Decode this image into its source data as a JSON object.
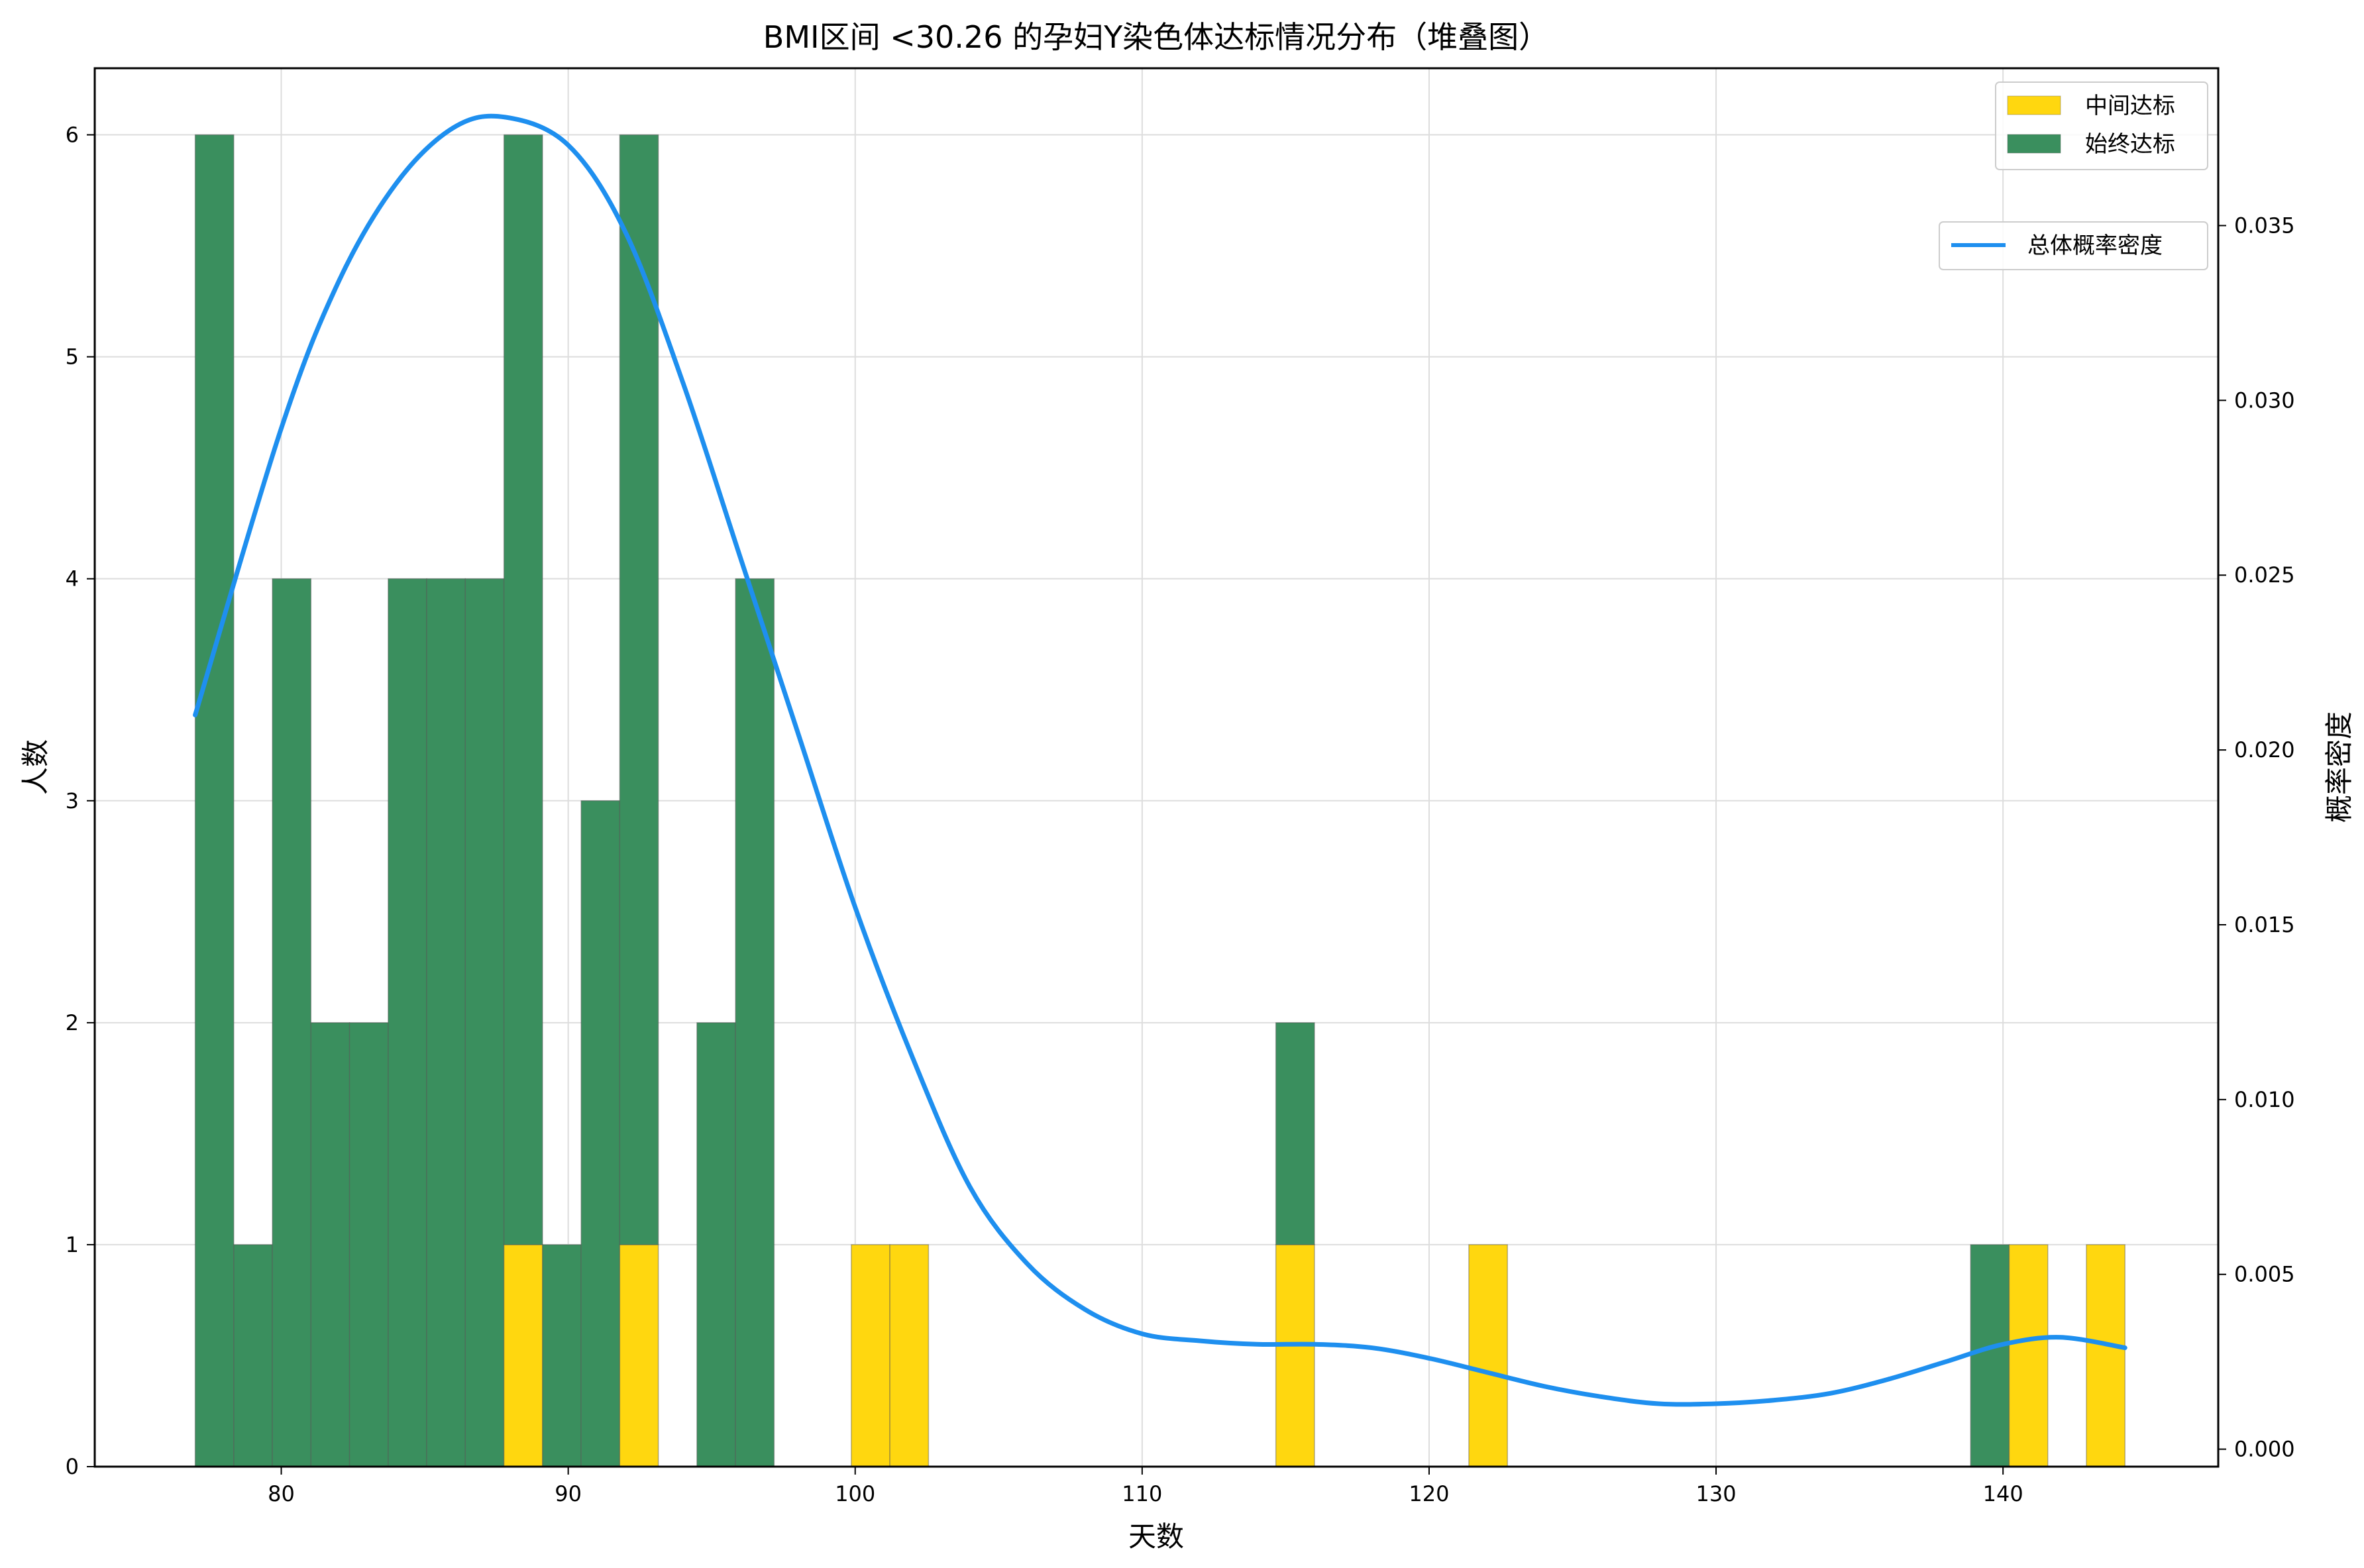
{
  "chart_data": {
    "type": "bar",
    "title": "BMI区间 <30.26 的孕妇Y染色体达标情况分布（堆叠图）",
    "xlabel": "天数",
    "ylabel": "人数",
    "y2label": "概率密度",
    "xlim": [
      73.5,
      147.5
    ],
    "ylim": [
      0,
      6.3
    ],
    "y2lim": [
      -0.0005,
      0.0395
    ],
    "xticks": [
      80,
      90,
      100,
      110,
      120,
      130,
      140
    ],
    "yticks": [
      0,
      1,
      2,
      3,
      4,
      5,
      6
    ],
    "y2ticks": [
      "0.000",
      "0.005",
      "0.010",
      "0.015",
      "0.020",
      "0.025",
      "0.030",
      "0.035"
    ],
    "grid": true,
    "bin_edges": [
      77.0,
      78.345,
      79.69,
      81.035,
      82.38,
      83.725,
      85.07,
      86.415,
      87.76,
      89.105,
      90.45,
      91.795,
      93.14,
      94.485,
      95.83,
      97.175,
      98.52,
      99.865,
      101.21,
      102.555,
      103.9,
      105.245,
      106.59,
      107.935,
      109.28,
      110.625,
      111.97,
      113.315,
      114.66,
      116.005,
      117.35,
      118.695,
      120.04,
      121.385,
      122.73,
      124.075,
      125.42,
      126.765,
      128.11,
      129.455,
      130.8,
      132.145,
      133.49,
      134.835,
      136.18,
      137.525,
      138.87,
      140.215,
      141.56,
      142.905,
      144.25
    ],
    "series": [
      {
        "name": "中间达标",
        "color": "#FFD70F",
        "values": [
          0,
          0,
          0,
          0,
          0,
          0,
          0,
          0,
          1,
          0,
          0,
          1,
          0,
          0,
          0,
          0,
          0,
          1,
          1,
          0,
          0,
          0,
          0,
          0,
          0,
          0,
          0,
          0,
          1,
          0,
          0,
          0,
          0,
          1,
          0,
          0,
          0,
          0,
          0,
          0,
          0,
          0,
          0,
          0,
          0,
          0,
          0,
          1,
          0,
          1
        ]
      },
      {
        "name": "始终达标",
        "color": "#3A8F5E",
        "values": [
          6,
          1,
          4,
          2,
          2,
          4,
          4,
          4,
          5,
          1,
          3,
          5,
          0,
          2,
          4,
          0,
          0,
          0,
          0,
          0,
          0,
          0,
          0,
          0,
          0,
          0,
          0,
          0,
          1,
          0,
          0,
          0,
          0,
          0,
          0,
          0,
          0,
          0,
          0,
          0,
          0,
          0,
          0,
          0,
          0,
          0,
          1,
          0,
          0,
          0
        ]
      }
    ],
    "density": {
      "name": "总体概率密度",
      "color": "#1E8FEF",
      "x": [
        77,
        80,
        82,
        84,
        86,
        87.8,
        90,
        92,
        94,
        96,
        98,
        100,
        102,
        104,
        106,
        108,
        110,
        112,
        114,
        116,
        118,
        120,
        122,
        124,
        126,
        128,
        130,
        132,
        134,
        136,
        138,
        140,
        142,
        144.25
      ],
      "y": [
        0.021,
        0.0292,
        0.0334,
        0.0362,
        0.0378,
        0.0381,
        0.0373,
        0.0348,
        0.0305,
        0.0255,
        0.0205,
        0.0155,
        0.0112,
        0.0075,
        0.0053,
        0.004,
        0.0033,
        0.0031,
        0.003,
        0.003,
        0.0029,
        0.0026,
        0.0022,
        0.0018,
        0.0015,
        0.0013,
        0.0013,
        0.0014,
        0.0016,
        0.002,
        0.0025,
        0.003,
        0.0032,
        0.0029
      ]
    },
    "legend_placement": "top-right"
  }
}
